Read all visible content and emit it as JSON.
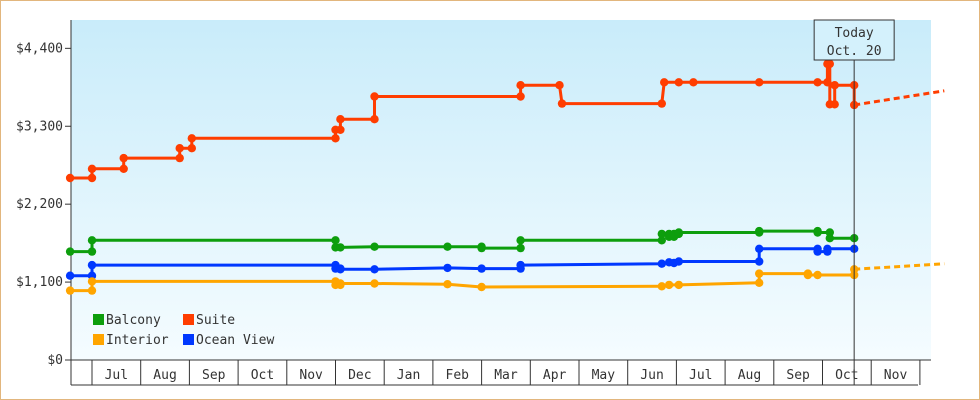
{
  "chart_data": {
    "type": "line",
    "title": "",
    "xlabel": "",
    "ylabel": "",
    "ylim": [
      0,
      4800
    ],
    "y_ticks": [
      "$0",
      "$1,100",
      "$2,200",
      "$3,300",
      "$4,400"
    ],
    "y_tick_values": [
      0,
      1100,
      2200,
      3300,
      4400
    ],
    "x_ticks": [
      "Jul",
      "Aug",
      "Sep",
      "Oct",
      "Nov",
      "Dec",
      "Jan",
      "Feb",
      "Mar",
      "Apr",
      "May",
      "Jun",
      "Jul",
      "Aug",
      "Sep",
      "Oct",
      "Nov"
    ],
    "x_range": [
      -0.45,
      17.5
    ],
    "grid": false,
    "legend_position": "bottom-left",
    "today_marker": {
      "line1": "Today",
      "line2": "Oct. 20",
      "x": 15.65
    },
    "series": [
      {
        "name": "Suite",
        "color": "#ff3d00",
        "points": [
          [
            -0.45,
            2570
          ],
          [
            0,
            2570
          ],
          [
            0,
            2700
          ],
          [
            0.65,
            2700
          ],
          [
            0.65,
            2850
          ],
          [
            1.8,
            2850
          ],
          [
            1.8,
            2990
          ],
          [
            2.05,
            2990
          ],
          [
            2.05,
            3130
          ],
          [
            5.0,
            3130
          ],
          [
            5.0,
            3250
          ],
          [
            5.1,
            3250
          ],
          [
            5.1,
            3400
          ],
          [
            5.8,
            3400
          ],
          [
            5.8,
            3720
          ],
          [
            8.8,
            3720
          ],
          [
            8.8,
            3880
          ],
          [
            9.6,
            3880
          ],
          [
            9.65,
            3620
          ],
          [
            11.7,
            3620
          ],
          [
            11.75,
            3920
          ],
          [
            12.05,
            3920
          ],
          [
            12.05,
            3920
          ],
          [
            12.35,
            3920
          ],
          [
            13.7,
            3920
          ],
          [
            14.9,
            3920
          ],
          [
            14.9,
            3920
          ],
          [
            15.1,
            3920
          ],
          [
            15.1,
            4180
          ],
          [
            15.15,
            4180
          ],
          [
            15.15,
            3610
          ],
          [
            15.25,
            3610
          ],
          [
            15.25,
            3880
          ],
          [
            15.65,
            3880
          ],
          [
            15.65,
            3600
          ]
        ],
        "markers": [
          [
            -0.45,
            2570
          ],
          [
            0,
            2570
          ],
          [
            0,
            2700
          ],
          [
            0.65,
            2700
          ],
          [
            0.65,
            2850
          ],
          [
            1.8,
            2850
          ],
          [
            1.8,
            2990
          ],
          [
            2.05,
            2990
          ],
          [
            2.05,
            3130
          ],
          [
            5.0,
            3130
          ],
          [
            5.0,
            3250
          ],
          [
            5.1,
            3250
          ],
          [
            5.1,
            3400
          ],
          [
            5.8,
            3400
          ],
          [
            5.8,
            3720
          ],
          [
            8.8,
            3720
          ],
          [
            8.8,
            3880
          ],
          [
            9.6,
            3880
          ],
          [
            9.65,
            3620
          ],
          [
            11.7,
            3620
          ],
          [
            11.75,
            3920
          ],
          [
            12.05,
            3920
          ],
          [
            12.35,
            3920
          ],
          [
            13.7,
            3920
          ],
          [
            14.9,
            3920
          ],
          [
            15.1,
            3920
          ],
          [
            15.1,
            4180
          ],
          [
            15.15,
            4180
          ],
          [
            15.15,
            3610
          ],
          [
            15.25,
            3610
          ],
          [
            15.25,
            3880
          ],
          [
            15.65,
            3880
          ],
          [
            15.65,
            3600
          ]
        ],
        "projection": [
          [
            15.65,
            3600
          ],
          [
            17.5,
            3800
          ]
        ]
      },
      {
        "name": "Balcony",
        "color": "#0d9e0d",
        "points": [
          [
            -0.45,
            1530
          ],
          [
            0,
            1530
          ],
          [
            0,
            1690
          ],
          [
            5.0,
            1690
          ],
          [
            5.0,
            1590
          ],
          [
            5.1,
            1590
          ],
          [
            5.8,
            1600
          ],
          [
            7.3,
            1600
          ],
          [
            8.0,
            1600
          ],
          [
            8.0,
            1580
          ],
          [
            8.8,
            1580
          ],
          [
            8.8,
            1690
          ],
          [
            11.7,
            1690
          ],
          [
            11.7,
            1780
          ],
          [
            11.85,
            1780
          ],
          [
            11.85,
            1740
          ],
          [
            11.95,
            1740
          ],
          [
            11.95,
            1780
          ],
          [
            12.05,
            1780
          ],
          [
            12.05,
            1800
          ],
          [
            13.7,
            1800
          ],
          [
            13.7,
            1820
          ],
          [
            14.9,
            1820
          ],
          [
            14.9,
            1800
          ],
          [
            15.15,
            1800
          ],
          [
            15.15,
            1720
          ],
          [
            15.65,
            1720
          ]
        ],
        "markers": [
          [
            -0.45,
            1530
          ],
          [
            0,
            1530
          ],
          [
            0,
            1690
          ],
          [
            5.0,
            1690
          ],
          [
            5.0,
            1590
          ],
          [
            5.1,
            1590
          ],
          [
            5.8,
            1600
          ],
          [
            7.3,
            1600
          ],
          [
            8.0,
            1600
          ],
          [
            8.0,
            1580
          ],
          [
            8.8,
            1580
          ],
          [
            8.8,
            1690
          ],
          [
            11.7,
            1690
          ],
          [
            11.7,
            1780
          ],
          [
            11.85,
            1780
          ],
          [
            11.85,
            1740
          ],
          [
            11.95,
            1740
          ],
          [
            11.95,
            1780
          ],
          [
            12.05,
            1780
          ],
          [
            12.05,
            1800
          ],
          [
            13.7,
            1800
          ],
          [
            13.7,
            1820
          ],
          [
            14.9,
            1820
          ],
          [
            14.9,
            1800
          ],
          [
            15.15,
            1800
          ],
          [
            15.15,
            1720
          ],
          [
            15.65,
            1720
          ]
        ]
      },
      {
        "name": "Ocean View",
        "color": "#0038ff",
        "points": [
          [
            -0.45,
            1190
          ],
          [
            0,
            1190
          ],
          [
            0,
            1340
          ],
          [
            5.0,
            1340
          ],
          [
            5.0,
            1290
          ],
          [
            5.1,
            1290
          ],
          [
            5.1,
            1280
          ],
          [
            5.8,
            1280
          ],
          [
            7.3,
            1300
          ],
          [
            8.0,
            1290
          ],
          [
            8.8,
            1290
          ],
          [
            8.8,
            1340
          ],
          [
            11.7,
            1360
          ],
          [
            11.85,
            1380
          ],
          [
            11.95,
            1370
          ],
          [
            12.05,
            1390
          ],
          [
            13.7,
            1390
          ],
          [
            13.7,
            1570
          ],
          [
            14.9,
            1570
          ],
          [
            14.9,
            1530
          ],
          [
            15.1,
            1530
          ],
          [
            15.1,
            1570
          ],
          [
            15.65,
            1570
          ]
        ],
        "markers": [
          [
            -0.45,
            1190
          ],
          [
            0,
            1190
          ],
          [
            0,
            1340
          ],
          [
            5.0,
            1340
          ],
          [
            5.0,
            1290
          ],
          [
            5.1,
            1290
          ],
          [
            5.1,
            1280
          ],
          [
            5.8,
            1280
          ],
          [
            7.3,
            1300
          ],
          [
            8.0,
            1290
          ],
          [
            8.8,
            1290
          ],
          [
            8.8,
            1340
          ],
          [
            11.7,
            1360
          ],
          [
            11.85,
            1380
          ],
          [
            11.95,
            1370
          ],
          [
            12.05,
            1390
          ],
          [
            13.7,
            1390
          ],
          [
            13.7,
            1570
          ],
          [
            14.9,
            1570
          ],
          [
            14.9,
            1530
          ],
          [
            15.1,
            1530
          ],
          [
            15.1,
            1570
          ],
          [
            15.65,
            1570
          ]
        ]
      },
      {
        "name": "Interior",
        "color": "#ffa500",
        "points": [
          [
            -0.45,
            980
          ],
          [
            0,
            980
          ],
          [
            0,
            1110
          ],
          [
            5.0,
            1110
          ],
          [
            5.0,
            1060
          ],
          [
            5.1,
            1060
          ],
          [
            5.1,
            1080
          ],
          [
            5.8,
            1080
          ],
          [
            7.3,
            1070
          ],
          [
            8.0,
            1030
          ],
          [
            11.7,
            1040
          ],
          [
            11.85,
            1060
          ],
          [
            12.05,
            1060
          ],
          [
            13.7,
            1090
          ],
          [
            13.7,
            1220
          ],
          [
            14.7,
            1220
          ],
          [
            14.7,
            1200
          ],
          [
            14.9,
            1200
          ],
          [
            14.9,
            1200
          ],
          [
            15.65,
            1200
          ],
          [
            15.65,
            1280
          ]
        ],
        "markers": [
          [
            -0.45,
            980
          ],
          [
            0,
            980
          ],
          [
            0,
            1110
          ],
          [
            5.0,
            1110
          ],
          [
            5.0,
            1060
          ],
          [
            5.1,
            1060
          ],
          [
            5.1,
            1080
          ],
          [
            5.8,
            1080
          ],
          [
            7.3,
            1070
          ],
          [
            8.0,
            1030
          ],
          [
            11.7,
            1040
          ],
          [
            11.85,
            1060
          ],
          [
            12.05,
            1060
          ],
          [
            13.7,
            1090
          ],
          [
            13.7,
            1220
          ],
          [
            14.7,
            1220
          ],
          [
            14.7,
            1200
          ],
          [
            14.9,
            1200
          ],
          [
            15.65,
            1200
          ],
          [
            15.65,
            1280
          ]
        ],
        "projection": [
          [
            15.65,
            1280
          ],
          [
            17.5,
            1360
          ]
        ]
      }
    ],
    "legend": [
      {
        "name": "Balcony",
        "color": "#0d9e0d"
      },
      {
        "name": "Suite",
        "color": "#ff3d00"
      },
      {
        "name": "Interior",
        "color": "#ffa500"
      },
      {
        "name": "Ocean View",
        "color": "#0038ff"
      }
    ]
  }
}
